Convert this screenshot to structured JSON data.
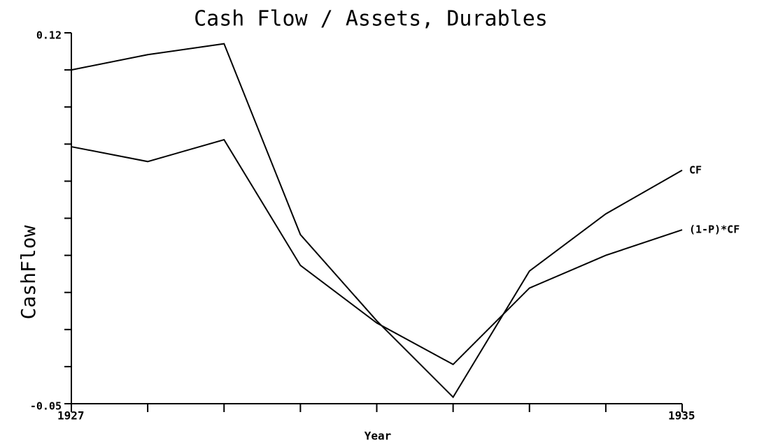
{
  "chart_data": {
    "type": "line",
    "title": "Cash Flow / Assets, Durables",
    "x_label": "Year",
    "y_label": "CashFlow",
    "x": [
      1927,
      1928,
      1929,
      1930,
      1931,
      1932,
      1933,
      1934,
      1935
    ],
    "series": [
      {
        "name": "CF",
        "color": "#000000",
        "values": [
          0.103,
          0.11,
          0.115,
          0.0275,
          -0.012,
          -0.047,
          0.0108,
          0.037,
          0.057
        ]
      },
      {
        "name": "(1-P)*CF",
        "color": "#000000",
        "values": [
          0.0678,
          0.061,
          0.071,
          0.0134,
          -0.013,
          -0.032,
          0.003,
          0.018,
          0.0297
        ]
      }
    ],
    "xlim": [
      1927,
      1935
    ],
    "xticks": [
      1927,
      1935
    ],
    "x_minor_ticks": [
      1928,
      1929,
      1930,
      1931,
      1932,
      1933,
      1934
    ],
    "ylim": [
      -0.05,
      0.12
    ],
    "yticks": [
      -0.05,
      0.12
    ],
    "y_minor_ticks": [
      -0.033,
      -0.016,
      0.001,
      0.018,
      0.035,
      0.052,
      0.069,
      0.086,
      0.103
    ],
    "grid": false
  }
}
